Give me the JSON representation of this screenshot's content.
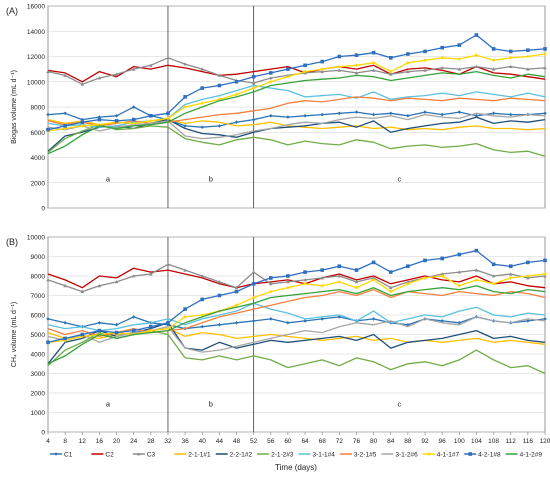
{
  "chart_data": [
    {
      "type": "line",
      "panel_label": "(A)",
      "ylabel": "Biogas volume  (mL d⁻¹)",
      "xlim": [
        4,
        120
      ],
      "ylim": [
        0,
        16000
      ],
      "yticks": [
        0,
        2000,
        4000,
        6000,
        8000,
        10000,
        12000,
        14000,
        16000
      ],
      "grid": true,
      "phase_dividers": [
        32,
        52
      ],
      "phase_labels": [
        {
          "x": 18,
          "text": "a"
        },
        {
          "x": 42,
          "text": "b"
        },
        {
          "x": 86,
          "text": "c"
        }
      ],
      "x": [
        4,
        8,
        12,
        16,
        20,
        24,
        28,
        32,
        36,
        40,
        44,
        48,
        52,
        56,
        60,
        64,
        68,
        72,
        76,
        80,
        84,
        88,
        92,
        96,
        100,
        104,
        108,
        112,
        116,
        120
      ],
      "series": [
        {
          "name": "C1",
          "color": "#2e75b6",
          "marker": "diamond",
          "values": [
            7400,
            7500,
            7000,
            7200,
            7300,
            8000,
            7300,
            7000,
            6500,
            6400,
            6500,
            6800,
            7000,
            7300,
            7200,
            7300,
            7400,
            7500,
            7600,
            7400,
            7500,
            7300,
            7600,
            7400,
            7600,
            7300,
            7500,
            7400,
            7400,
            7500
          ]
        },
        {
          "name": "C2",
          "color": "#c00000",
          "marker": "none",
          "values": [
            10900,
            10700,
            10000,
            10800,
            10400,
            11200,
            11000,
            11300,
            11100,
            10800,
            10500,
            10600,
            10800,
            11000,
            11200,
            10700,
            11000,
            11200,
            11000,
            11300,
            10600,
            11000,
            11100,
            10900,
            10600,
            11200,
            10700,
            10600,
            10400,
            10200
          ]
        },
        {
          "name": "C3",
          "color": "#8c8c8c",
          "marker": "triangle",
          "values": [
            10800,
            10500,
            9800,
            10300,
            10600,
            11000,
            11300,
            11900,
            11400,
            11000,
            10500,
            10100,
            9900,
            10300,
            10500,
            10700,
            10800,
            10900,
            10700,
            10900,
            10600,
            10800,
            10900,
            11100,
            11000,
            11200,
            11000,
            11200,
            11000,
            11100
          ]
        },
        {
          "name": "2-1-1#1",
          "color": "#ffc000",
          "marker": "none",
          "values": [
            7000,
            6700,
            6900,
            6600,
            6800,
            6700,
            6900,
            7000,
            6700,
            6900,
            6800,
            6500,
            6600,
            6800,
            6500,
            6400,
            6300,
            6400,
            6500,
            6300,
            6400,
            6200,
            6300,
            6200,
            6400,
            6500,
            6300,
            6300,
            6200,
            6300
          ]
        },
        {
          "name": "2-2-1#2",
          "color": "#1f4e79",
          "marker": "none",
          "values": [
            4500,
            5700,
            6000,
            6400,
            6500,
            6300,
            6700,
            7000,
            6300,
            5900,
            5800,
            5600,
            6000,
            6300,
            6400,
            6500,
            6700,
            6800,
            6400,
            6900,
            6000,
            6300,
            6500,
            6700,
            6800,
            7200,
            6700,
            6900,
            6800,
            7000
          ]
        },
        {
          "name": "2-1-2#3",
          "color": "#70ad47",
          "marker": "none",
          "values": [
            4400,
            5500,
            6100,
            6600,
            6200,
            6300,
            6500,
            6400,
            5500,
            5200,
            5000,
            5400,
            5600,
            5400,
            5000,
            5300,
            5100,
            5000,
            5400,
            5200,
            4700,
            4900,
            5000,
            4800,
            4900,
            5100,
            4600,
            4400,
            4500,
            4100
          ]
        },
        {
          "name": "3-1-1#4",
          "color": "#5bc0de",
          "marker": "none",
          "values": [
            6700,
            6500,
            6600,
            6400,
            6500,
            6800,
            6900,
            7100,
            8200,
            8600,
            8900,
            9300,
            9700,
            9500,
            9300,
            8800,
            8900,
            9000,
            8700,
            9200,
            8600,
            8800,
            8900,
            9100,
            8900,
            9200,
            9000,
            8800,
            9100,
            8800
          ]
        },
        {
          "name": "3-2-1#5",
          "color": "#f4813f",
          "marker": "none",
          "values": [
            6900,
            6600,
            6800,
            6500,
            6700,
            6900,
            6700,
            6800,
            7000,
            7200,
            7400,
            7500,
            7700,
            7900,
            8300,
            8500,
            8400,
            8600,
            8800,
            8700,
            8500,
            8700,
            8600,
            8500,
            8700,
            8600,
            8500,
            8700,
            8600,
            8500
          ]
        },
        {
          "name": "3-1-2#6",
          "color": "#a6a6a6",
          "marker": "none",
          "values": [
            6400,
            6200,
            6500,
            6100,
            6400,
            6600,
            6700,
            6900,
            5700,
            5500,
            5600,
            5800,
            6100,
            6300,
            6600,
            6800,
            6700,
            7000,
            7200,
            7100,
            7300,
            7000,
            7400,
            7200,
            7100,
            7500,
            7300,
            7200,
            7400,
            7300
          ]
        },
        {
          "name": "4-1-1#7",
          "color": "#ffd700",
          "marker": "diamond",
          "values": [
            6100,
            6300,
            6500,
            6600,
            6800,
            6700,
            6900,
            7100,
            8000,
            8300,
            8600,
            9000,
            9500,
            10000,
            10400,
            10800,
            11000,
            11200,
            11300,
            11500,
            10800,
            11500,
            11700,
            11900,
            11800,
            12100,
            11700,
            11900,
            12000,
            12200
          ]
        },
        {
          "name": "4-2-1#8",
          "color": "#2f6fc1",
          "marker": "square",
          "values": [
            6200,
            6500,
            6800,
            7000,
            6900,
            7000,
            7300,
            7500,
            8800,
            9500,
            9700,
            10000,
            10400,
            10700,
            11000,
            11300,
            11600,
            12000,
            12100,
            12300,
            11900,
            12200,
            12400,
            12700,
            12900,
            13700,
            12600,
            12400,
            12500,
            12600
          ]
        },
        {
          "name": "4-1-2#9",
          "color": "#38a13a",
          "marker": "none",
          "values": [
            4300,
            4900,
            5800,
            6500,
            6300,
            6500,
            6600,
            6800,
            7500,
            8000,
            8500,
            8800,
            9200,
            9700,
            9900,
            10100,
            10200,
            10300,
            10500,
            10400,
            10100,
            10300,
            10500,
            10700,
            10600,
            10800,
            10500,
            10300,
            10600,
            10400
          ]
        }
      ]
    },
    {
      "type": "line",
      "panel_label": "(B)",
      "ylabel": "CH₄ volume  (mL d⁻¹)",
      "xlabel": "Time (days)",
      "xlim": [
        4,
        120
      ],
      "ylim": [
        0,
        10000
      ],
      "yticks": [
        0,
        1000,
        2000,
        3000,
        4000,
        5000,
        6000,
        7000,
        8000,
        9000,
        10000
      ],
      "xticks": [
        4,
        8,
        12,
        16,
        20,
        24,
        28,
        32,
        36,
        40,
        44,
        48,
        52,
        56,
        60,
        64,
        68,
        72,
        76,
        80,
        84,
        88,
        92,
        96,
        100,
        104,
        108,
        112,
        116,
        120
      ],
      "grid": true,
      "phase_dividers": [
        32,
        52
      ],
      "phase_labels": [
        {
          "x": 18,
          "text": "a"
        },
        {
          "x": 42,
          "text": "b"
        },
        {
          "x": 86,
          "text": "c"
        }
      ],
      "x": [
        4,
        8,
        12,
        16,
        20,
        24,
        28,
        32,
        36,
        40,
        44,
        48,
        52,
        56,
        60,
        64,
        68,
        72,
        76,
        80,
        84,
        88,
        92,
        96,
        100,
        104,
        108,
        112,
        116,
        120
      ],
      "series": [
        {
          "name": "C1",
          "color": "#2e75b6",
          "marker": "diamond",
          "values": [
            5800,
            5600,
            5400,
            5600,
            5500,
            5900,
            5600,
            5500,
            5300,
            5400,
            5500,
            5600,
            5700,
            5800,
            5600,
            5700,
            5800,
            5900,
            5700,
            5800,
            5600,
            5500,
            5800,
            5700,
            5600,
            5900,
            5700,
            5600,
            5700,
            5800
          ]
        },
        {
          "name": "C2",
          "color": "#c00000",
          "marker": "none",
          "values": [
            8100,
            7800,
            7400,
            8000,
            7900,
            8400,
            8200,
            8300,
            8100,
            7900,
            7600,
            7400,
            7600,
            7700,
            7800,
            7600,
            7900,
            8100,
            7800,
            8000,
            7600,
            7800,
            8000,
            7800,
            7700,
            8000,
            7600,
            7700,
            7500,
            7400
          ]
        },
        {
          "name": "C3",
          "color": "#8c8c8c",
          "marker": "triangle",
          "values": [
            7800,
            7500,
            7200,
            7500,
            7700,
            8000,
            8100,
            8600,
            8300,
            8000,
            7700,
            7400,
            8200,
            7600,
            7700,
            7800,
            7900,
            8000,
            7700,
            7900,
            7400,
            7700,
            7900,
            8100,
            8200,
            8300,
            8000,
            8100,
            7900,
            8000
          ]
        },
        {
          "name": "2-1-1#1",
          "color": "#ffc000",
          "marker": "none",
          "values": [
            5100,
            4800,
            4900,
            4800,
            5000,
            5100,
            5200,
            5300,
            4900,
            5100,
            5000,
            4800,
            4900,
            5000,
            4900,
            4800,
            4700,
            4800,
            4900,
            4700,
            4800,
            4600,
            4700,
            4600,
            4700,
            4800,
            4600,
            4700,
            4600,
            4500
          ]
        },
        {
          "name": "2-2-1#2",
          "color": "#1f4e79",
          "marker": "none",
          "values": [
            3500,
            4600,
            4800,
            5200,
            4900,
            5100,
            5300,
            5600,
            4300,
            4200,
            4600,
            4300,
            4500,
            4700,
            4600,
            4700,
            4800,
            4900,
            4700,
            5000,
            4300,
            4600,
            4700,
            4800,
            5000,
            5200,
            4800,
            4900,
            4700,
            4600
          ]
        },
        {
          "name": "2-1-2#3",
          "color": "#70ad47",
          "marker": "none",
          "values": [
            3400,
            4200,
            4600,
            5100,
            4800,
            5000,
            5200,
            5000,
            3800,
            3700,
            3900,
            3700,
            3900,
            3700,
            3300,
            3500,
            3700,
            3400,
            3800,
            3600,
            3200,
            3500,
            3600,
            3400,
            3700,
            4200,
            3700,
            3300,
            3400,
            3000
          ]
        },
        {
          "name": "3-1-1#4",
          "color": "#5bc0de",
          "marker": "none",
          "values": [
            5500,
            5300,
            5400,
            5200,
            5300,
            5500,
            5600,
            5800,
            5500,
            5800,
            6000,
            6200,
            6600,
            6300,
            6100,
            5800,
            5900,
            6000,
            5700,
            6200,
            5600,
            5800,
            6000,
            5900,
            6200,
            6400,
            6000,
            5900,
            6100,
            6000
          ]
        },
        {
          "name": "3-2-1#5",
          "color": "#f4813f",
          "marker": "none",
          "values": [
            5300,
            5000,
            5200,
            4900,
            5100,
            5300,
            5100,
            5200,
            5300,
            5600,
            5900,
            6100,
            6300,
            6500,
            6700,
            6900,
            7000,
            7200,
            7000,
            7300,
            6900,
            7200,
            7100,
            7000,
            7200,
            7100,
            7000,
            7200,
            7100,
            6900
          ]
        },
        {
          "name": "3-1-2#6",
          "color": "#a6a6a6",
          "marker": "none",
          "values": [
            4900,
            4700,
            5000,
            4600,
            4900,
            5100,
            5200,
            5400,
            4300,
            4100,
            4200,
            4400,
            4600,
            4800,
            5000,
            5200,
            5100,
            5400,
            5600,
            5500,
            5700,
            5400,
            5800,
            5600,
            5500,
            5900,
            5700,
            5600,
            5800,
            5700
          ]
        },
        {
          "name": "4-1-1#7",
          "color": "#ffd700",
          "marker": "diamond",
          "values": [
            4600,
            4700,
            4900,
            5000,
            5100,
            5000,
            5200,
            5300,
            5900,
            6000,
            6200,
            6500,
            6900,
            7200,
            7400,
            7600,
            7500,
            7700,
            7400,
            7800,
            7200,
            7600,
            7900,
            8000,
            7500,
            7800,
            7600,
            7900,
            8000,
            8100
          ]
        },
        {
          "name": "4-2-1#8",
          "color": "#2f6fc1",
          "marker": "square",
          "values": [
            4600,
            4800,
            5000,
            5200,
            5100,
            5200,
            5400,
            5600,
            6300,
            6800,
            7000,
            7200,
            7600,
            7900,
            8000,
            8200,
            8300,
            8500,
            8300,
            8700,
            8200,
            8500,
            8800,
            8900,
            9100,
            9300,
            8600,
            8500,
            8700,
            8800
          ]
        },
        {
          "name": "4-1-2#9",
          "color": "#38a13a",
          "marker": "none",
          "values": [
            3500,
            3900,
            4500,
            5000,
            4800,
            5000,
            5100,
            5200,
            5600,
            5900,
            6200,
            6400,
            6600,
            6900,
            7000,
            7100,
            7200,
            7300,
            7100,
            7400,
            7000,
            7200,
            7300,
            7400,
            7300,
            7500,
            7200,
            7100,
            7300,
            7200
          ]
        }
      ]
    }
  ]
}
